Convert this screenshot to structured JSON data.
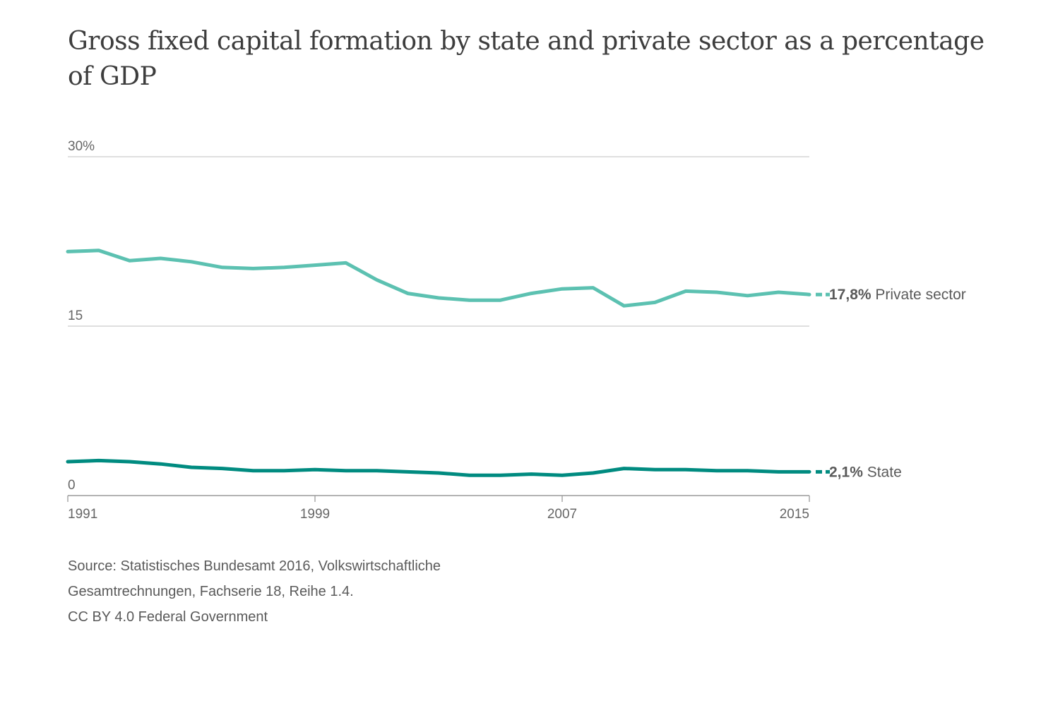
{
  "chart_data": {
    "type": "line",
    "title": "Gross fixed capital formation by state and private sector as a percentage of GDP",
    "x": [
      1991,
      1992,
      1993,
      1994,
      1995,
      1996,
      1997,
      1998,
      1999,
      2000,
      2001,
      2002,
      2003,
      2004,
      2005,
      2006,
      2007,
      2008,
      2009,
      2010,
      2011,
      2012,
      2013,
      2014,
      2015
    ],
    "x_ticks": [
      1991,
      1999,
      2007,
      2015
    ],
    "y_ticks": [
      {
        "value": 30,
        "label": "30%"
      },
      {
        "value": 15,
        "label": "15"
      },
      {
        "value": 0,
        "label": "0"
      }
    ],
    "ylim": [
      0,
      30
    ],
    "grid": true,
    "series": [
      {
        "name": "Private sector",
        "color": "#5cc1b1",
        "end_label": "17,8%",
        "values": [
          21.6,
          21.7,
          20.8,
          21.0,
          20.7,
          20.2,
          20.1,
          20.2,
          20.4,
          20.6,
          19.1,
          17.9,
          17.5,
          17.3,
          17.3,
          17.9,
          18.3,
          18.4,
          16.8,
          17.1,
          18.1,
          18.0,
          17.7,
          18.0,
          17.8
        ]
      },
      {
        "name": "State",
        "color": "#008b80",
        "end_label": "2,1%",
        "values": [
          3.0,
          3.1,
          3.0,
          2.8,
          2.5,
          2.4,
          2.2,
          2.2,
          2.3,
          2.2,
          2.2,
          2.1,
          2.0,
          1.8,
          1.8,
          1.9,
          1.8,
          2.0,
          2.4,
          2.3,
          2.3,
          2.2,
          2.2,
          2.1,
          2.1
        ]
      }
    ]
  },
  "source": {
    "line1": "Source: Statistisches Bundesamt 2016, Volkswirtschaftliche",
    "line2": "Gesamtrechnungen, Fachserie 18, Reihe 1.4.",
    "line3": "CC BY 4.0 Federal Government"
  }
}
